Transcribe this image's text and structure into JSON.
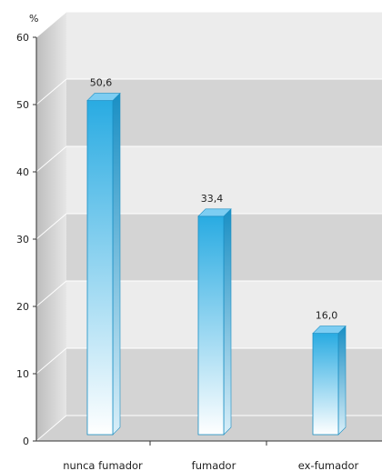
{
  "chart_data": {
    "type": "bar",
    "title": "",
    "xlabel": "",
    "ylabel": "%",
    "ylim": [
      0,
      60
    ],
    "yticks": [
      0,
      10,
      20,
      30,
      40,
      50,
      60
    ],
    "categories": [
      "nunca fumador",
      "fumador",
      "ex-fumador"
    ],
    "values": [
      50.6,
      33.4,
      16.0
    ],
    "value_labels": [
      "50,6",
      "33,4",
      "16,0"
    ],
    "grid": true,
    "legend": "none",
    "style": "3d",
    "colors": {
      "bar_top": "#29abe2",
      "bar_bottom": "#ffffff",
      "bar_side": "#1a8fc4",
      "bar_cap": "#7dcdf2",
      "band_dark": "#d4d4d4",
      "band_light": "#ececec",
      "wall": "#c9c9c9"
    }
  }
}
